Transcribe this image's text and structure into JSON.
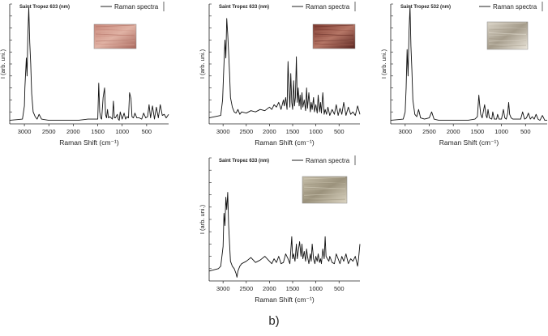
{
  "figure": {
    "caption": "b)"
  },
  "chart_data": [
    {
      "type": "line",
      "title": "Saint Tropez 633 (nm)",
      "legend": "Raman spectra",
      "legend_position": "top-right",
      "xlabel": "Raman Shift (cm⁻¹)",
      "ylabel": "I (arb. uni.)",
      "xlim": [
        3300,
        50
      ],
      "x_reversed": true,
      "xticks": [
        3000,
        2500,
        2000,
        1500,
        1000,
        500
      ],
      "ylim": [
        0,
        1.0
      ],
      "grid": false,
      "inset_swatch": {
        "colors": [
          "#c7877a",
          "#e0b2a4",
          "#a8675c"
        ]
      },
      "series": [
        {
          "x": [
            3300,
            3040,
            3000,
            2990,
            2960,
            2945,
            2930,
            2910,
            2890,
            2870,
            2850,
            2820,
            2780,
            2740,
            2700,
            2650,
            2500,
            2300,
            2100,
            1900,
            1700,
            1500,
            1480,
            1460,
            1440,
            1420,
            1390,
            1360,
            1340,
            1320,
            1300,
            1280,
            1250,
            1200,
            1180,
            1160,
            1140,
            1100,
            1080,
            1060,
            1040,
            1000,
            960,
            930,
            900,
            870,
            850,
            820,
            800,
            770,
            740,
            700,
            650,
            600,
            560,
            520,
            480,
            450,
            420,
            380,
            340,
            300,
            260,
            220,
            180,
            140,
            100,
            50
          ],
          "y": [
            0.03,
            0.04,
            0.15,
            0.3,
            0.55,
            0.4,
            0.72,
            0.97,
            0.68,
            0.5,
            0.25,
            0.1,
            0.06,
            0.04,
            0.08,
            0.04,
            0.03,
            0.03,
            0.03,
            0.03,
            0.04,
            0.04,
            0.34,
            0.1,
            0.05,
            0.04,
            0.22,
            0.3,
            0.08,
            0.05,
            0.12,
            0.05,
            0.06,
            0.04,
            0.19,
            0.05,
            0.05,
            0.08,
            0.04,
            0.03,
            0.1,
            0.04,
            0.09,
            0.04,
            0.06,
            0.05,
            0.26,
            0.21,
            0.06,
            0.05,
            0.09,
            0.05,
            0.05,
            0.04,
            0.09,
            0.05,
            0.06,
            0.16,
            0.05,
            0.15,
            0.04,
            0.14,
            0.05,
            0.16,
            0.07,
            0.08,
            0.05,
            0.08
          ]
        }
      ]
    },
    {
      "type": "line",
      "title": "Saint Tropez 633 (nm)",
      "legend": "Raman spectra",
      "legend_position": "top-right",
      "xlabel": "Raman Shift (cm⁻¹)",
      "ylabel": "I (arb. uni.)",
      "xlim": [
        3300,
        50
      ],
      "x_reversed": true,
      "xticks": [
        3000,
        2500,
        2000,
        1500,
        1000,
        500
      ],
      "ylim": [
        0,
        1.0
      ],
      "grid": false,
      "inset_swatch": {
        "colors": [
          "#7e3b31",
          "#b57666",
          "#5a2520"
        ]
      },
      "series": [
        {
          "x": [
            3300,
            3050,
            3010,
            2990,
            2960,
            2940,
            2920,
            2900,
            2880,
            2860,
            2840,
            2800,
            2760,
            2720,
            2680,
            2640,
            2600,
            2500,
            2400,
            2300,
            2200,
            2100,
            2000,
            1950,
            1900,
            1850,
            1800,
            1750,
            1700,
            1680,
            1650,
            1620,
            1600,
            1580,
            1560,
            1540,
            1520,
            1500,
            1480,
            1460,
            1440,
            1420,
            1400,
            1380,
            1360,
            1340,
            1320,
            1300,
            1280,
            1250,
            1220,
            1200,
            1180,
            1150,
            1120,
            1100,
            1080,
            1050,
            1030,
            1000,
            970,
            950,
            920,
            900,
            880,
            850,
            820,
            800,
            770,
            740,
            700,
            650,
            600,
            560,
            520,
            480,
            440,
            400,
            350,
            300,
            250,
            200,
            150,
            100,
            50
          ],
          "y": [
            0.05,
            0.07,
            0.2,
            0.4,
            0.7,
            0.55,
            0.88,
            0.75,
            0.6,
            0.42,
            0.22,
            0.14,
            0.1,
            0.09,
            0.12,
            0.08,
            0.1,
            0.09,
            0.11,
            0.1,
            0.12,
            0.11,
            0.14,
            0.12,
            0.16,
            0.14,
            0.18,
            0.12,
            0.2,
            0.15,
            0.22,
            0.12,
            0.52,
            0.3,
            0.14,
            0.42,
            0.18,
            0.12,
            0.36,
            0.15,
            0.22,
            0.56,
            0.18,
            0.3,
            0.15,
            0.24,
            0.12,
            0.26,
            0.14,
            0.2,
            0.11,
            0.3,
            0.13,
            0.26,
            0.1,
            0.18,
            0.12,
            0.22,
            0.1,
            0.16,
            0.09,
            0.24,
            0.1,
            0.18,
            0.09,
            0.26,
            0.08,
            0.12,
            0.08,
            0.14,
            0.07,
            0.12,
            0.08,
            0.16,
            0.07,
            0.13,
            0.08,
            0.18,
            0.07,
            0.14,
            0.08,
            0.1,
            0.07,
            0.15,
            0.08
          ]
        }
      ]
    },
    {
      "type": "line",
      "title": "Saint Tropez 532 (nm)",
      "legend": "Raman spectra",
      "legend_position": "top-right",
      "xlabel": "Raman Shift (cm⁻¹)",
      "ylabel": "I (arb. uni.)",
      "xlim": [
        3300,
        50
      ],
      "x_reversed": true,
      "xticks": [
        3000,
        2500,
        2000,
        1500,
        1000,
        500
      ],
      "ylim": [
        0,
        1.0
      ],
      "grid": false,
      "inset_swatch": {
        "colors": [
          "#d8d2c5",
          "#a59c8b",
          "#ece7dc"
        ]
      },
      "series": [
        {
          "x": [
            3300,
            3040,
            3000,
            2980,
            2960,
            2940,
            2920,
            2900,
            2880,
            2860,
            2840,
            2800,
            2760,
            2720,
            2680,
            2600,
            2500,
            2450,
            2400,
            2300,
            2100,
            1900,
            1700,
            1550,
            1500,
            1470,
            1450,
            1430,
            1400,
            1350,
            1320,
            1300,
            1280,
            1250,
            1200,
            1180,
            1150,
            1100,
            1080,
            1050,
            1000,
            960,
            930,
            900,
            870,
            850,
            830,
            800,
            760,
            700,
            650,
            600,
            560,
            520,
            480,
            440,
            400,
            360,
            320,
            280,
            240,
            200,
            150,
            100,
            50
          ],
          "y": [
            0.03,
            0.04,
            0.1,
            0.3,
            0.62,
            0.4,
            0.78,
            0.98,
            0.65,
            0.45,
            0.2,
            0.08,
            0.06,
            0.12,
            0.05,
            0.04,
            0.05,
            0.1,
            0.04,
            0.03,
            0.03,
            0.03,
            0.03,
            0.04,
            0.06,
            0.24,
            0.15,
            0.08,
            0.05,
            0.16,
            0.07,
            0.05,
            0.12,
            0.05,
            0.04,
            0.1,
            0.04,
            0.04,
            0.08,
            0.04,
            0.04,
            0.12,
            0.05,
            0.04,
            0.09,
            0.18,
            0.08,
            0.05,
            0.04,
            0.04,
            0.04,
            0.04,
            0.1,
            0.04,
            0.05,
            0.09,
            0.04,
            0.06,
            0.04,
            0.08,
            0.04,
            0.03,
            0.07,
            0.03,
            0.03
          ]
        }
      ]
    },
    {
      "type": "line",
      "title": "Saint Tropez 633 (nm)",
      "legend": "Raman spectra",
      "legend_position": "top-right",
      "xlabel": "Raman Shift (cm⁻¹)",
      "ylabel": "I (arb. uni.)",
      "xlim": [
        3300,
        50
      ],
      "x_reversed": true,
      "xticks": [
        3000,
        2500,
        2000,
        1500,
        1000,
        500
      ],
      "ylim": [
        0,
        1.0
      ],
      "grid": false,
      "inset_swatch": {
        "colors": [
          "#c5bda8",
          "#9b927c",
          "#ddd6c4"
        ]
      },
      "series": [
        {
          "x": [
            3300,
            3100,
            3050,
            3000,
            2980,
            2960,
            2940,
            2920,
            2900,
            2880,
            2860,
            2840,
            2800,
            2760,
            2720,
            2700,
            2680,
            2640,
            2600,
            2500,
            2400,
            2300,
            2200,
            2100,
            2000,
            1950,
            1900,
            1850,
            1800,
            1750,
            1700,
            1650,
            1600,
            1560,
            1520,
            1500,
            1480,
            1450,
            1420,
            1400,
            1380,
            1350,
            1320,
            1300,
            1280,
            1250,
            1220,
            1200,
            1180,
            1150,
            1120,
            1100,
            1080,
            1050,
            1020,
            1000,
            970,
            950,
            920,
            900,
            880,
            850,
            820,
            800,
            780,
            750,
            720,
            700,
            650,
            600,
            560,
            520,
            480,
            440,
            400,
            350,
            300,
            250,
            200,
            150,
            100,
            80,
            50
          ],
          "y": [
            0.08,
            0.1,
            0.12,
            0.28,
            0.55,
            0.45,
            0.68,
            0.58,
            0.72,
            0.46,
            0.3,
            0.16,
            0.12,
            0.1,
            0.06,
            0.03,
            0.08,
            0.12,
            0.14,
            0.16,
            0.19,
            0.15,
            0.17,
            0.2,
            0.16,
            0.14,
            0.18,
            0.15,
            0.2,
            0.14,
            0.15,
            0.22,
            0.18,
            0.14,
            0.36,
            0.18,
            0.22,
            0.16,
            0.3,
            0.18,
            0.24,
            0.32,
            0.2,
            0.3,
            0.18,
            0.24,
            0.16,
            0.26,
            0.2,
            0.14,
            0.22,
            0.16,
            0.3,
            0.18,
            0.14,
            0.2,
            0.16,
            0.22,
            0.15,
            0.18,
            0.14,
            0.26,
            0.18,
            0.36,
            0.2,
            0.18,
            0.16,
            0.2,
            0.15,
            0.14,
            0.22,
            0.18,
            0.14,
            0.2,
            0.16,
            0.22,
            0.14,
            0.18,
            0.16,
            0.2,
            0.12,
            0.18,
            0.3
          ]
        }
      ]
    }
  ]
}
